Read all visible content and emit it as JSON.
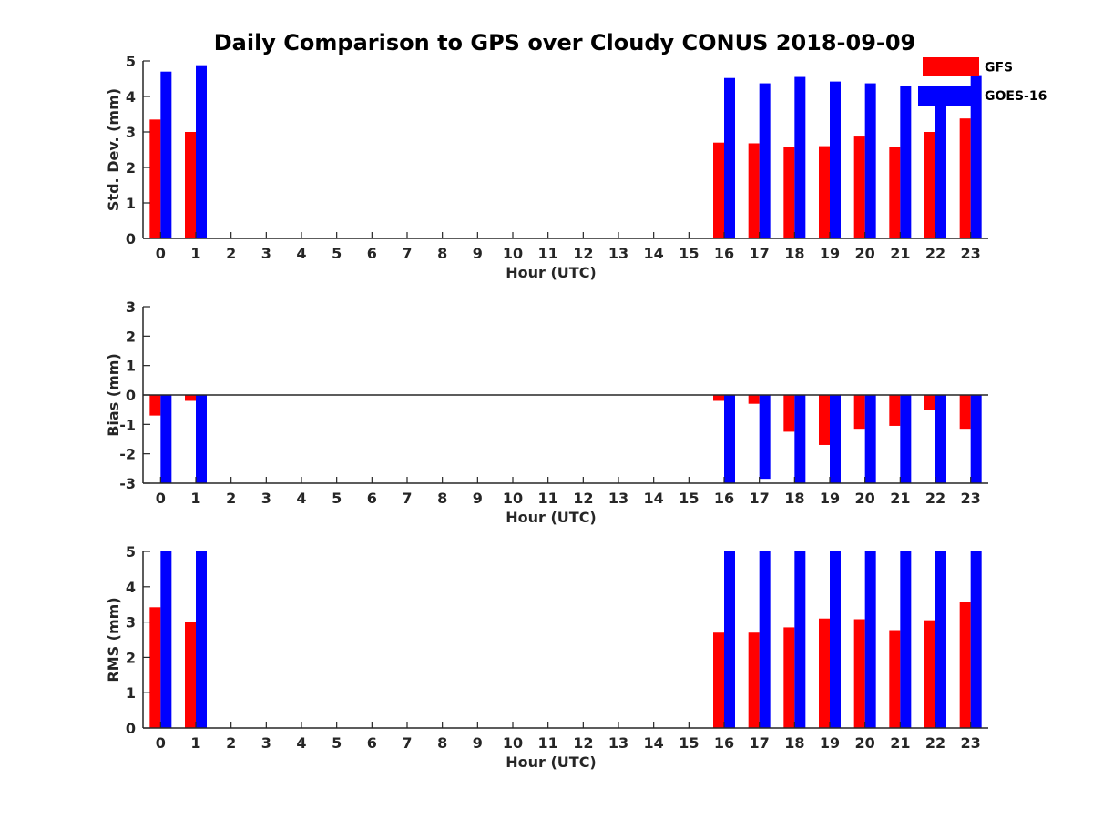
{
  "title": "Daily Comparison to GPS over Cloudy CONUS 2018-09-09",
  "legend": [
    {
      "name": "GFS",
      "color": "#ff0000"
    },
    {
      "name": "GOES-16",
      "color": "#0000ff"
    }
  ],
  "chart_data": [
    {
      "type": "bar",
      "xlabel": "Hour (UTC)",
      "ylabel": "Std. Dev. (mm)",
      "ylim": [
        0,
        5
      ],
      "yticks": [
        0,
        1,
        2,
        3,
        4,
        5
      ],
      "categories": [
        "0",
        "1",
        "2",
        "3",
        "4",
        "5",
        "6",
        "7",
        "8",
        "9",
        "10",
        "11",
        "12",
        "13",
        "14",
        "15",
        "16",
        "17",
        "18",
        "19",
        "20",
        "21",
        "22",
        "23"
      ],
      "series": [
        {
          "name": "GFS",
          "color": "#ff0000",
          "values": [
            3.35,
            3.0,
            null,
            null,
            null,
            null,
            null,
            null,
            null,
            null,
            null,
            null,
            null,
            null,
            null,
            null,
            2.7,
            2.68,
            2.58,
            2.6,
            2.87,
            2.58,
            3.0,
            3.38
          ]
        },
        {
          "name": "GOES-16",
          "color": "#0000ff",
          "values": [
            4.7,
            4.88,
            null,
            null,
            null,
            null,
            null,
            null,
            null,
            null,
            null,
            null,
            null,
            null,
            null,
            null,
            4.52,
            4.37,
            4.55,
            4.42,
            4.37,
            4.3,
            4.0,
            4.6
          ]
        }
      ],
      "zero_line": false,
      "legend_position": "top-right"
    },
    {
      "type": "bar",
      "xlabel": "Hour (UTC)",
      "ylabel": "Bias (mm)",
      "ylim": [
        -3,
        3
      ],
      "yticks": [
        -3,
        -2,
        -1,
        0,
        1,
        2,
        3
      ],
      "categories": [
        "0",
        "1",
        "2",
        "3",
        "4",
        "5",
        "6",
        "7",
        "8",
        "9",
        "10",
        "11",
        "12",
        "13",
        "14",
        "15",
        "16",
        "17",
        "18",
        "19",
        "20",
        "21",
        "22",
        "23"
      ],
      "series": [
        {
          "name": "GFS",
          "color": "#ff0000",
          "values": [
            -0.7,
            -0.2,
            null,
            null,
            null,
            null,
            null,
            null,
            null,
            null,
            null,
            null,
            null,
            null,
            null,
            null,
            -0.2,
            -0.3,
            -1.25,
            -1.7,
            -1.15,
            -1.05,
            -0.5,
            -1.15
          ]
        },
        {
          "name": "GOES-16",
          "color": "#0000ff",
          "values": [
            -3,
            -3,
            null,
            null,
            null,
            null,
            null,
            null,
            null,
            null,
            null,
            null,
            null,
            null,
            null,
            null,
            -3,
            -2.85,
            -3,
            -3,
            -3,
            -3,
            -3,
            -3
          ]
        }
      ],
      "zero_line": true
    },
    {
      "type": "bar",
      "xlabel": "Hour (UTC)",
      "ylabel": "RMS (mm)",
      "ylim": [
        0,
        5
      ],
      "yticks": [
        0,
        1,
        2,
        3,
        4,
        5
      ],
      "categories": [
        "0",
        "1",
        "2",
        "3",
        "4",
        "5",
        "6",
        "7",
        "8",
        "9",
        "10",
        "11",
        "12",
        "13",
        "14",
        "15",
        "16",
        "17",
        "18",
        "19",
        "20",
        "21",
        "22",
        "23"
      ],
      "series": [
        {
          "name": "GFS",
          "color": "#ff0000",
          "values": [
            3.42,
            3.0,
            null,
            null,
            null,
            null,
            null,
            null,
            null,
            null,
            null,
            null,
            null,
            null,
            null,
            null,
            2.7,
            2.7,
            2.85,
            3.1,
            3.08,
            2.77,
            3.05,
            3.58
          ]
        },
        {
          "name": "GOES-16",
          "color": "#0000ff",
          "values": [
            5,
            5,
            null,
            null,
            null,
            null,
            null,
            null,
            null,
            null,
            null,
            null,
            null,
            null,
            null,
            null,
            5,
            5,
            5,
            5,
            5,
            5,
            5,
            5
          ]
        }
      ],
      "zero_line": false
    }
  ]
}
